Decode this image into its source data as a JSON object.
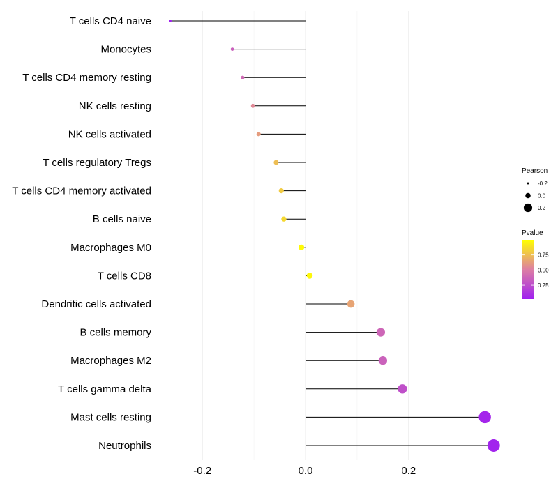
{
  "chart_data": {
    "type": "lollipop",
    "categories": [
      "T cells CD4 naive",
      "Monocytes",
      "T cells CD4 memory resting",
      "NK cells resting",
      "NK cells activated",
      "T cells regulatory  Tregs ",
      "T cells CD4 memory activated",
      "B cells naive",
      "Macrophages M0",
      "T cells CD8",
      "Dendritic cells activated",
      "B cells memory",
      "Macrophages M2",
      "T cells gamma delta",
      "Mast cells resting",
      "Neutrophils"
    ],
    "values": [
      -0.262,
      -0.142,
      -0.122,
      -0.102,
      -0.091,
      -0.057,
      -0.047,
      -0.042,
      -0.008,
      0.008,
      0.088,
      0.146,
      0.15,
      0.188,
      0.348,
      0.365
    ],
    "pvalues": [
      0.02,
      0.35,
      0.4,
      0.55,
      0.62,
      0.75,
      0.8,
      0.85,
      0.98,
      0.97,
      0.65,
      0.38,
      0.36,
      0.27,
      0.05,
      0.04
    ],
    "xlim": [
      -0.3,
      0.38
    ],
    "xticks": [
      -0.2,
      0.0,
      0.2
    ],
    "xtick_labels": [
      "-0.2",
      "0.0",
      "0.2"
    ],
    "title": "",
    "xlabel": "",
    "ylabel": "",
    "grid": true,
    "legend_size": {
      "title": "Pearson",
      "values": [
        -0.2,
        0.0,
        0.2
      ],
      "labels": [
        "-0.2",
        "0.0",
        "0.2"
      ]
    },
    "legend_color": {
      "title": "Pvalue",
      "ticks": [
        0.75,
        0.5,
        0.25
      ],
      "labels": [
        "0.75",
        "0.50",
        "0.25"
      ],
      "range": [
        0.02,
        1.0
      ],
      "color_low": "#a020f0",
      "color_mid": "#dd7fa3",
      "color_high": "#ffff00"
    },
    "legend_position": "right",
    "stem_color": "#000000"
  }
}
